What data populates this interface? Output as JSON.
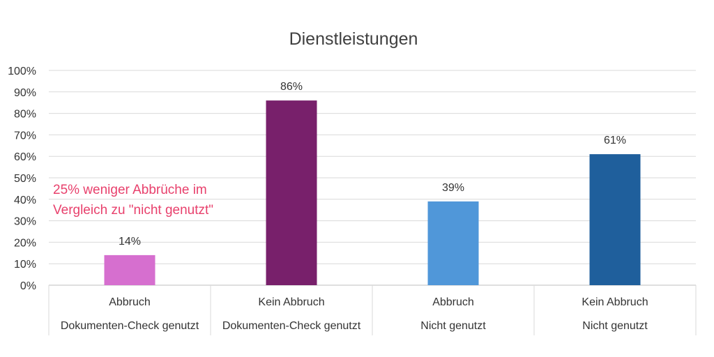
{
  "chart_data": {
    "type": "bar",
    "title": "Dienstleistungen",
    "ylim": [
      0,
      100
    ],
    "y_ticks": [
      {
        "value": 0,
        "label": "0%"
      },
      {
        "value": 10,
        "label": "10%"
      },
      {
        "value": 20,
        "label": "20%"
      },
      {
        "value": 30,
        "label": "30%"
      },
      {
        "value": 40,
        "label": "40%"
      },
      {
        "value": 50,
        "label": "50%"
      },
      {
        "value": 60,
        "label": "60%"
      },
      {
        "value": 70,
        "label": "70%"
      },
      {
        "value": 80,
        "label": "80%"
      },
      {
        "value": 90,
        "label": "90%"
      },
      {
        "value": 100,
        "label": "100%"
      }
    ],
    "grid": true,
    "categories": [
      {
        "label": "Abbruch",
        "group": "Dokumenten-Check genutzt"
      },
      {
        "label": "Kein Abbruch",
        "group": "Dokumenten-Check genutzt"
      },
      {
        "label": "Abbruch",
        "group": "Nicht genutzt"
      },
      {
        "label": "Kein Abbruch",
        "group": "Nicht genutzt"
      }
    ],
    "values": [
      14,
      86,
      39,
      61
    ],
    "data_labels": [
      "14%",
      "86%",
      "39%",
      "61%"
    ],
    "colors": [
      "#d66fcf",
      "#78206b",
      "#5097d9",
      "#1f5f9c"
    ],
    "annotation": {
      "lines": [
        "25% weniger Abbrüche im",
        "Vergleich zu \"nicht genutzt\""
      ],
      "color": "#e8406c"
    }
  }
}
